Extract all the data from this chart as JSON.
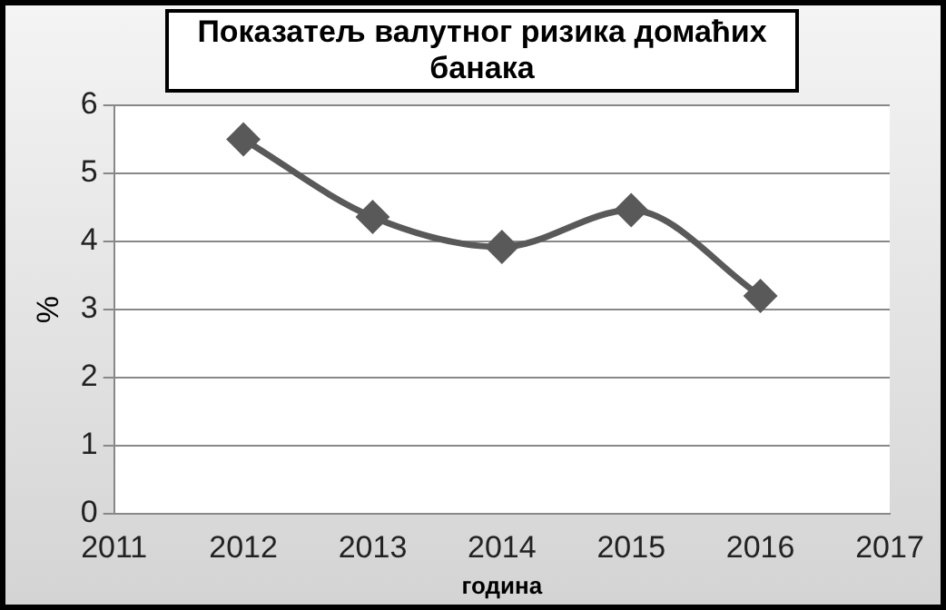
{
  "chart_data": {
    "type": "line",
    "title": "Показатељ валутног ризика домаћих банака",
    "xlabel": "година",
    "ylabel": "%",
    "x": [
      2012,
      2013,
      2014,
      2015,
      2016
    ],
    "series": [
      {
        "color": "#595959",
        "values": [
          5.5,
          4.36,
          3.92,
          4.46,
          3.2
        ]
      }
    ],
    "xlim": [
      2011,
      2017
    ],
    "xticks": [
      2011,
      2012,
      2013,
      2014,
      2015,
      2016,
      2017
    ],
    "ylim": [
      0,
      6
    ],
    "yticks": [
      0,
      1,
      2,
      3,
      4,
      5,
      6
    ],
    "grid": "y",
    "legend": false,
    "marker": "diamond",
    "line_style": "solid"
  }
}
